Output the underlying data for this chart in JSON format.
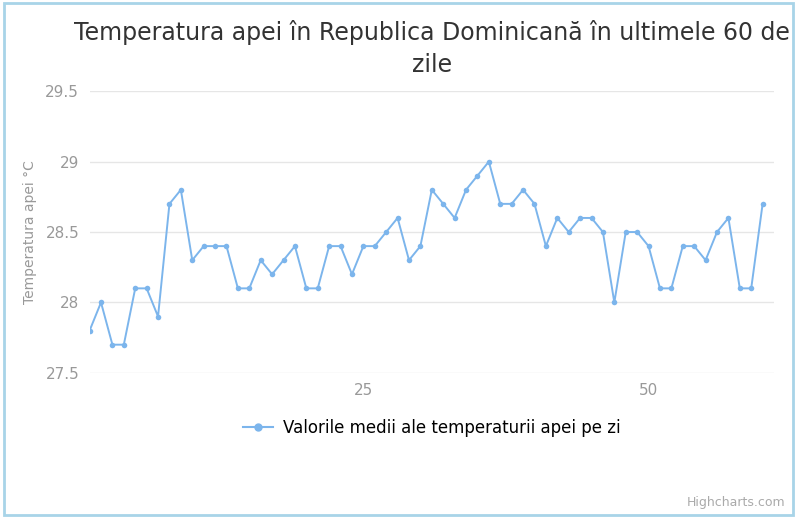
{
  "title": "Temperatura apei în Republica Dominicană\nîn ultimele 60 de zile",
  "title_line1": "Temperatura apei în Republica Dominicană în ultimele 60 de",
  "title_line2": "zile",
  "ylabel": "Temperatura apei °C",
  "legend_label": "Valorile medii ale temperaturii apei pe zi",
  "watermark": "Highcharts.com",
  "ylim": [
    27.5,
    29.5
  ],
  "ytick_values": [
    27.5,
    28.0,
    28.5,
    29.0,
    29.5
  ],
  "ytick_labels": [
    "27.5",
    "28",
    "28.5",
    "29",
    "29.5"
  ],
  "xtick_values": [
    25,
    50
  ],
  "xtick_labels": [
    "25",
    "50"
  ],
  "xlim_left": 1,
  "xlim_right": 61,
  "background_color": "#ffffff",
  "line_color": "#7cb5ec",
  "marker_color": "#7cb5ec",
  "grid_color": "#e6e6e6",
  "text_color": "#333333",
  "tick_color": "#999999",
  "border_color": "#a8d4e8",
  "title_fontsize": 17,
  "ylabel_fontsize": 10,
  "tick_fontsize": 11,
  "legend_fontsize": 12,
  "watermark_fontsize": 9,
  "values": [
    27.8,
    28.0,
    27.7,
    27.7,
    28.1,
    28.1,
    27.9,
    28.7,
    28.8,
    28.3,
    28.4,
    28.4,
    28.4,
    28.1,
    28.1,
    28.3,
    28.2,
    28.3,
    28.4,
    28.1,
    28.1,
    28.4,
    28.4,
    28.2,
    28.4,
    28.4,
    28.5,
    28.6,
    28.3,
    28.4,
    28.8,
    28.7,
    28.6,
    28.8,
    28.9,
    29.0,
    28.7,
    28.7,
    28.8,
    28.7,
    28.4,
    28.6,
    28.5,
    28.6,
    28.6,
    28.5,
    28.0,
    28.5,
    28.5,
    28.4,
    28.1,
    28.1,
    28.4,
    28.4,
    28.3,
    28.5,
    28.6,
    28.1,
    28.1,
    28.7
  ]
}
